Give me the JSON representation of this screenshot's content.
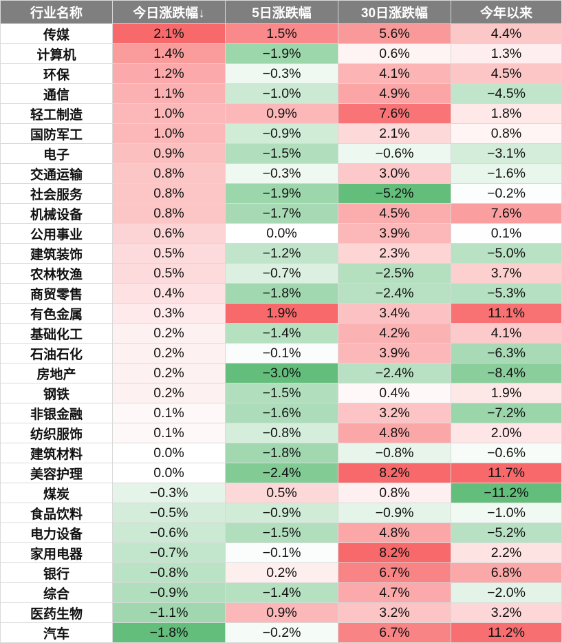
{
  "chart_data": {
    "type": "table",
    "columns": [
      "行业名称",
      "今日涨跌幅↓",
      "5日涨跌幅",
      "30日涨跌幅",
      "今年以来"
    ],
    "rows": [
      [
        "传媒",
        "2.1%",
        "1.5%",
        "5.6%",
        "4.4%"
      ],
      [
        "计算机",
        "1.4%",
        "−1.9%",
        "0.6%",
        "1.3%"
      ],
      [
        "环保",
        "1.2%",
        "−0.3%",
        "4.1%",
        "4.5%"
      ],
      [
        "通信",
        "1.1%",
        "−1.0%",
        "4.9%",
        "−4.5%"
      ],
      [
        "轻工制造",
        "1.0%",
        "0.9%",
        "7.6%",
        "1.8%"
      ],
      [
        "国防军工",
        "1.0%",
        "−0.9%",
        "2.1%",
        "0.8%"
      ],
      [
        "电子",
        "0.9%",
        "−1.5%",
        "−0.6%",
        "−3.1%"
      ],
      [
        "交通运输",
        "0.8%",
        "−0.3%",
        "3.0%",
        "−1.6%"
      ],
      [
        "社会服务",
        "0.8%",
        "−1.9%",
        "−5.2%",
        "−0.2%"
      ],
      [
        "机械设备",
        "0.8%",
        "−1.7%",
        "4.5%",
        "7.6%"
      ],
      [
        "公用事业",
        "0.6%",
        "0.0%",
        "3.9%",
        "0.1%"
      ],
      [
        "建筑装饰",
        "0.5%",
        "−1.2%",
        "2.3%",
        "−5.0%"
      ],
      [
        "农林牧渔",
        "0.5%",
        "−0.7%",
        "−2.5%",
        "3.7%"
      ],
      [
        "商贸零售",
        "0.4%",
        "−1.8%",
        "−2.4%",
        "−5.3%"
      ],
      [
        "有色金属",
        "0.3%",
        "1.9%",
        "3.4%",
        "11.1%"
      ],
      [
        "基础化工",
        "0.2%",
        "−1.4%",
        "4.2%",
        "4.1%"
      ],
      [
        "石油石化",
        "0.2%",
        "−0.1%",
        "3.9%",
        "−6.3%"
      ],
      [
        "房地产",
        "0.2%",
        "−3.0%",
        "−2.4%",
        "−8.4%"
      ],
      [
        "钢铁",
        "0.2%",
        "−1.5%",
        "0.4%",
        "1.9%"
      ],
      [
        "非银金融",
        "0.1%",
        "−1.6%",
        "3.2%",
        "−7.2%"
      ],
      [
        "纺织服饰",
        "0.1%",
        "−0.8%",
        "4.8%",
        "2.0%"
      ],
      [
        "建筑材料",
        "0.0%",
        "−1.8%",
        "−0.8%",
        "−0.6%"
      ],
      [
        "美容护理",
        "0.0%",
        "−2.4%",
        "8.2%",
        "11.7%"
      ],
      [
        "煤炭",
        "−0.3%",
        "0.5%",
        "0.8%",
        "−11.2%"
      ],
      [
        "食品饮料",
        "−0.5%",
        "−0.9%",
        "−0.9%",
        "−1.0%"
      ],
      [
        "电力设备",
        "−0.6%",
        "−1.5%",
        "4.8%",
        "−5.2%"
      ],
      [
        "家用电器",
        "−0.7%",
        "−0.1%",
        "8.2%",
        "2.2%"
      ],
      [
        "银行",
        "−0.8%",
        "0.2%",
        "6.7%",
        "6.8%"
      ],
      [
        "综合",
        "−0.9%",
        "−1.4%",
        "4.7%",
        "−2.0%"
      ],
      [
        "医药生物",
        "−1.1%",
        "0.9%",
        "3.2%",
        "3.2%"
      ],
      [
        "汽车",
        "−1.8%",
        "−0.2%",
        "6.7%",
        "11.2%"
      ]
    ],
    "color_scale": {
      "positive": "#f8696b",
      "neutral": "#ffffff",
      "negative": "#63be7b",
      "scope": "per-column"
    }
  }
}
